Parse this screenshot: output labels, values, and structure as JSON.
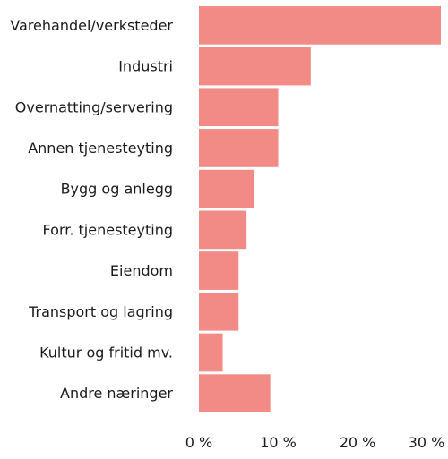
{
  "chart_data": {
    "type": "bar",
    "orientation": "horizontal",
    "categories": [
      "Varehandel/verksteder",
      "Industri",
      "Overnatting/servering",
      "Annen tjenesteyting",
      "Bygg og anlegg",
      "Forr. tjenesteyting",
      "Eiendom",
      "Transport og lagring",
      "Kultur og fritid mv.",
      "Andre næringer"
    ],
    "values": [
      30.5,
      14.1,
      10.0,
      10.0,
      7.0,
      6.0,
      5.0,
      5.0,
      3.0,
      9.0
    ],
    "xlim": [
      0,
      30.5
    ],
    "xticks": [
      0,
      10,
      20,
      30
    ],
    "xtick_labels": [
      "0 %",
      "10 %",
      "20 %",
      "30 %"
    ],
    "title": "",
    "xlabel": "",
    "ylabel": "",
    "grid": false,
    "legend": "none",
    "colors": {
      "bar": "#f28b85"
    }
  }
}
